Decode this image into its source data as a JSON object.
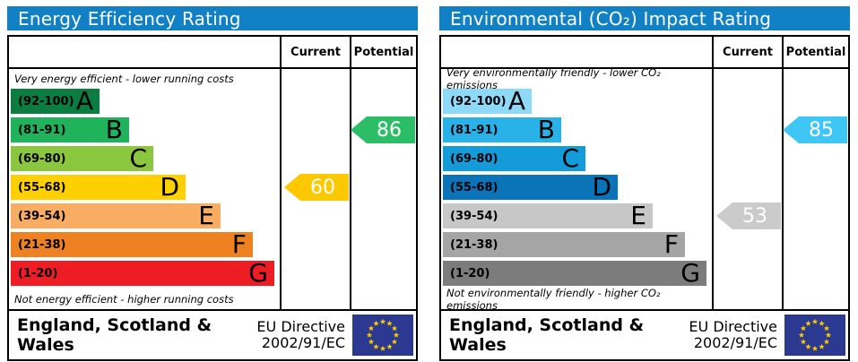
{
  "panels": [
    {
      "title": "Energy Efficiency Rating",
      "header_bg": "#1280c4",
      "col_current": "Current",
      "col_potential": "Potential",
      "caption_top": "Very energy efficient - lower running costs",
      "caption_bottom": "Not energy efficient - higher running costs",
      "bands": [
        {
          "letter": "A",
          "range": "(92-100)",
          "color": "#0b7d41",
          "width_pct": 33
        },
        {
          "letter": "B",
          "range": "(81-91)",
          "color": "#21b35b",
          "width_pct": 44
        },
        {
          "letter": "C",
          "range": "(69-80)",
          "color": "#8bc63f",
          "width_pct": 53
        },
        {
          "letter": "D",
          "range": "(55-68)",
          "color": "#fed000",
          "width_pct": 65
        },
        {
          "letter": "E",
          "range": "(39-54)",
          "color": "#f9ad63",
          "width_pct": 78
        },
        {
          "letter": "F",
          "range": "(21-38)",
          "color": "#ee8122",
          "width_pct": 90
        },
        {
          "letter": "G",
          "range": "(1-20)",
          "color": "#ee1c23",
          "width_pct": 98
        }
      ],
      "current": {
        "label": "60",
        "band_index": 3,
        "color": "#fcc800"
      },
      "potential": {
        "label": "86",
        "band_index": 1,
        "color": "#2bbe67"
      },
      "footer_region": "England, Scotland & Wales",
      "footer_directive_line1": "EU Directive",
      "footer_directive_line2": "2002/91/EC"
    },
    {
      "title": "Environmental (CO₂) Impact Rating",
      "header_bg": "#1280c4",
      "col_current": "Current",
      "col_potential": "Potential",
      "caption_top": "Very environmentally friendly - lower CO₂ emissions",
      "caption_bottom": "Not environmentally friendly - higher CO₂ emissions",
      "bands": [
        {
          "letter": "A",
          "range": "(92-100)",
          "color": "#8dd9f8",
          "width_pct": 33
        },
        {
          "letter": "B",
          "range": "(81-91)",
          "color": "#29b2e8",
          "width_pct": 44
        },
        {
          "letter": "C",
          "range": "(69-80)",
          "color": "#149bd9",
          "width_pct": 53
        },
        {
          "letter": "D",
          "range": "(55-68)",
          "color": "#0b73b8",
          "width_pct": 65
        },
        {
          "letter": "E",
          "range": "(39-54)",
          "color": "#c7c7c7",
          "width_pct": 78
        },
        {
          "letter": "F",
          "range": "(21-38)",
          "color": "#a5a5a5",
          "width_pct": 90
        },
        {
          "letter": "G",
          "range": "(1-20)",
          "color": "#7c7c7c",
          "width_pct": 98
        }
      ],
      "current": {
        "label": "53",
        "band_index": 4,
        "color": "#cbcbcb"
      },
      "potential": {
        "label": "85",
        "band_index": 1,
        "color": "#3ec6f4"
      },
      "footer_region": "England, Scotland & Wales",
      "footer_directive_line1": "EU Directive",
      "footer_directive_line2": "2002/91/EC"
    }
  ],
  "eu_flag": {
    "bg": "#2b3990",
    "stars": "#ffcc00"
  },
  "chart_data": [
    {
      "type": "bar",
      "title": "Energy Efficiency Rating",
      "categories": [
        "A (92-100)",
        "B (81-91)",
        "C (69-80)",
        "D (55-68)",
        "E (39-54)",
        "F (21-38)",
        "G (1-20)"
      ],
      "band_widths_pct": [
        33,
        44,
        53,
        65,
        78,
        90,
        98
      ],
      "series": [
        {
          "name": "Current",
          "value": 60,
          "band": "D"
        },
        {
          "name": "Potential",
          "value": 86,
          "band": "B"
        }
      ],
      "scale": [
        1,
        100
      ],
      "annotations": [
        "Very energy efficient - lower running costs",
        "Not energy efficient - higher running costs",
        "England, Scotland & Wales",
        "EU Directive 2002/91/EC"
      ]
    },
    {
      "type": "bar",
      "title": "Environmental (CO₂) Impact Rating",
      "categories": [
        "A (92-100)",
        "B (81-91)",
        "C (69-80)",
        "D (55-68)",
        "E (39-54)",
        "F (21-38)",
        "G (1-20)"
      ],
      "band_widths_pct": [
        33,
        44,
        53,
        65,
        78,
        90,
        98
      ],
      "series": [
        {
          "name": "Current",
          "value": 53,
          "band": "E"
        },
        {
          "name": "Potential",
          "value": 85,
          "band": "B"
        }
      ],
      "scale": [
        1,
        100
      ],
      "annotations": [
        "Very environmentally friendly - lower CO₂ emissions",
        "Not environmentally friendly - higher CO₂ emissions",
        "England, Scotland & Wales",
        "EU Directive 2002/91/EC"
      ]
    }
  ]
}
